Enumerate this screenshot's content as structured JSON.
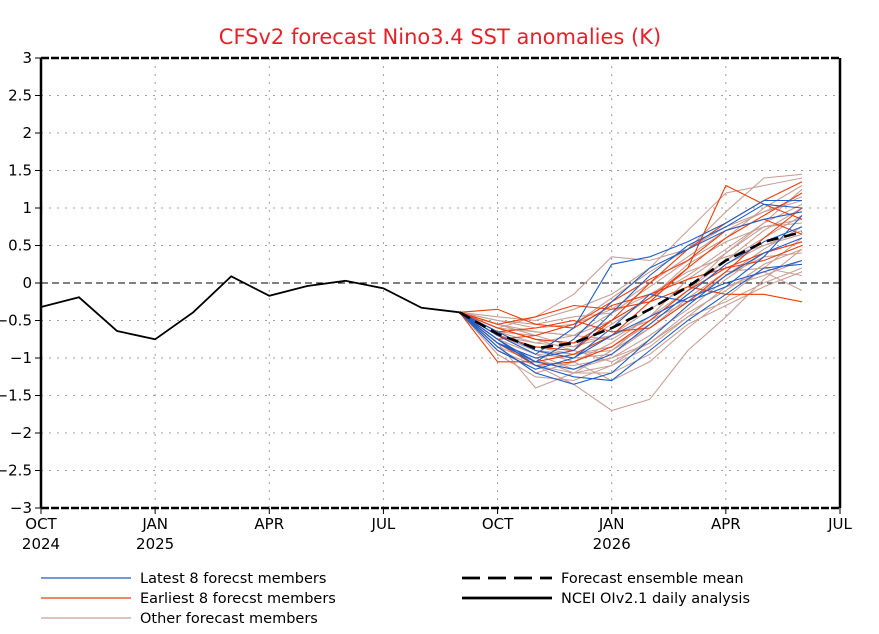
{
  "chart_data": {
    "type": "line",
    "title": "CFSv2 forecast Nino3.4 SST anomalies (K)",
    "xlabel": "",
    "ylabel": "",
    "ylim": [
      -3,
      3
    ],
    "yticks": [
      3,
      2.5,
      2,
      1.5,
      1,
      0.5,
      0,
      -0.5,
      -1,
      -1.5,
      -2,
      -2.5,
      -3
    ],
    "ytick_labels": [
      "3",
      "2.5",
      "2",
      "1.5",
      "1",
      "0.5",
      "0",
      "-0.5",
      "-1",
      "-1.5",
      "-2",
      "-2.5",
      "-3"
    ],
    "xlim_months": [
      0,
      21
    ],
    "xticks": [
      {
        "month": 0,
        "line1": "OCT",
        "line2": "2024"
      },
      {
        "month": 3,
        "line1": "JAN",
        "line2": "2025"
      },
      {
        "month": 6,
        "line1": "APR",
        "line2": ""
      },
      {
        "month": 9,
        "line1": "JUL",
        "line2": ""
      },
      {
        "month": 12,
        "line1": "OCT",
        "line2": ""
      },
      {
        "month": 15,
        "line1": "JAN",
        "line2": "2026"
      },
      {
        "month": 18,
        "line1": "APR",
        "line2": ""
      },
      {
        "month": 21,
        "line1": "JUL",
        "line2": ""
      }
    ],
    "grid": true,
    "zero_line": true,
    "legend": {
      "placement": "bottom",
      "entries": [
        {
          "label": "Latest 8 forecst members",
          "color": "#1f5fc8",
          "style": "solid"
        },
        {
          "label": "Earliest 8 forecst members",
          "color": "#f03c0a",
          "style": "solid"
        },
        {
          "label": "Other forecast members",
          "color": "#c8a096",
          "style": "solid"
        },
        {
          "label": "Forecast ensemble mean",
          "color": "#000000",
          "style": "dashed"
        },
        {
          "label": "NCEI OIv2.1 daily analysis",
          "color": "#000000",
          "style": "solid"
        }
      ]
    },
    "observed": {
      "name": "NCEI OIv2.1 daily analysis",
      "x_months": [
        0,
        1,
        2,
        3,
        4,
        5,
        6,
        7,
        8,
        9,
        10,
        11
      ],
      "values": [
        -0.32,
        -0.19,
        -0.64,
        -0.75,
        -0.39,
        0.09,
        -0.17,
        -0.04,
        0.03,
        -0.07,
        -0.33,
        -0.39
      ]
    },
    "forecast_x_months": [
      11,
      12,
      13,
      14,
      15,
      16,
      17,
      18,
      19,
      20
    ],
    "ensemble_mean": {
      "name": "Forecast ensemble mean",
      "values": [
        -0.39,
        -0.68,
        -0.87,
        -0.8,
        -0.6,
        -0.35,
        -0.05,
        0.3,
        0.55,
        0.68
      ]
    },
    "series": [
      {
        "name": "latest-1",
        "group": "latest",
        "values": [
          -0.39,
          -0.75,
          -1.05,
          -1.15,
          -0.95,
          -0.55,
          -0.15,
          0.25,
          0.55,
          0.75
        ]
      },
      {
        "name": "latest-2",
        "group": "latest",
        "values": [
          -0.39,
          -0.85,
          -1.2,
          -1.35,
          -1.2,
          -0.75,
          -0.3,
          0.1,
          0.4,
          0.6
        ]
      },
      {
        "name": "latest-3",
        "group": "latest",
        "values": [
          -0.39,
          -0.7,
          -0.95,
          -0.6,
          0.25,
          0.35,
          0.55,
          0.8,
          1.1,
          1.1
        ]
      },
      {
        "name": "latest-4",
        "group": "latest",
        "values": [
          -0.39,
          -0.8,
          -1.0,
          -0.9,
          -0.4,
          0.1,
          0.5,
          0.75,
          1.05,
          1.0
        ]
      },
      {
        "name": "latest-5",
        "group": "latest",
        "values": [
          -0.39,
          -0.9,
          -1.15,
          -1.0,
          -0.7,
          -0.45,
          -0.2,
          0.0,
          0.15,
          0.3
        ]
      },
      {
        "name": "latest-6",
        "group": "latest",
        "values": [
          -0.39,
          -0.75,
          -1.1,
          -1.25,
          -1.3,
          -0.9,
          -0.5,
          -0.15,
          0.2,
          0.25
        ]
      },
      {
        "name": "latest-7",
        "group": "latest",
        "values": [
          -0.39,
          -0.65,
          -0.9,
          -1.0,
          -0.6,
          -0.15,
          -0.25,
          -0.05,
          0.35,
          0.9
        ]
      },
      {
        "name": "latest-8",
        "group": "latest",
        "values": [
          -0.39,
          -0.8,
          -1.05,
          -0.75,
          -0.25,
          0.2,
          0.45,
          0.7,
          0.85,
          0.95
        ]
      },
      {
        "name": "earliest-1",
        "group": "earliest",
        "values": [
          -0.39,
          -1.05,
          -1.05,
          -0.95,
          -0.7,
          -0.25,
          0.2,
          1.3,
          1.05,
          0.85
        ]
      },
      {
        "name": "earliest-2",
        "group": "earliest",
        "values": [
          -0.39,
          -0.55,
          -0.45,
          -0.3,
          -0.35,
          -0.25,
          -0.05,
          -0.15,
          -0.15,
          -0.25
        ]
      },
      {
        "name": "earliest-3",
        "group": "earliest",
        "values": [
          -0.39,
          -0.7,
          -0.85,
          -0.9,
          -0.5,
          0.0,
          0.45,
          0.8,
          1.1,
          1.35
        ]
      },
      {
        "name": "earliest-4",
        "group": "earliest",
        "values": [
          -0.39,
          -0.35,
          -0.55,
          -0.6,
          -0.3,
          -0.15,
          0.05,
          0.2,
          0.4,
          0.55
        ]
      },
      {
        "name": "earliest-5",
        "group": "earliest",
        "values": [
          -0.39,
          -0.65,
          -0.6,
          -0.5,
          -0.65,
          -0.6,
          -0.25,
          0.15,
          0.6,
          1.0
        ]
      },
      {
        "name": "earliest-6",
        "group": "earliest",
        "values": [
          -0.39,
          -0.6,
          -0.75,
          -0.8,
          -0.5,
          -0.2,
          0.2,
          0.6,
          0.9,
          1.2
        ]
      },
      {
        "name": "earliest-7",
        "group": "earliest",
        "values": [
          -0.39,
          -0.8,
          -1.1,
          -1.05,
          -0.85,
          -0.5,
          -0.1,
          0.2,
          0.3,
          0.5
        ]
      },
      {
        "name": "earliest-8",
        "group": "earliest",
        "values": [
          -0.39,
          -0.75,
          -0.7,
          -0.55,
          -0.25,
          0.05,
          0.3,
          0.7,
          0.85,
          0.65
        ]
      },
      {
        "name": "other-1",
        "group": "other",
        "values": [
          -0.39,
          -0.7,
          -0.9,
          -1.05,
          -1.3,
          -1.05,
          -0.6,
          -0.2,
          0.2,
          0.6
        ]
      },
      {
        "name": "other-2",
        "group": "other",
        "values": [
          -0.39,
          -0.8,
          -1.4,
          -1.2,
          -0.9,
          -0.5,
          -0.1,
          0.3,
          0.7,
          1.0
        ]
      },
      {
        "name": "other-3",
        "group": "other",
        "values": [
          -0.39,
          -0.9,
          -1.1,
          -1.35,
          -1.7,
          -1.55,
          -0.9,
          -0.45,
          0.05,
          0.45
        ]
      },
      {
        "name": "other-4",
        "group": "other",
        "values": [
          -0.39,
          -0.6,
          -0.45,
          -0.15,
          0.35,
          0.3,
          0.45,
          0.95,
          1.4,
          1.45
        ]
      },
      {
        "name": "other-5",
        "group": "other",
        "values": [
          -0.39,
          -0.45,
          -0.5,
          -0.35,
          -0.15,
          0.2,
          0.7,
          1.2,
          1.3,
          1.4
        ]
      },
      {
        "name": "other-6",
        "group": "other",
        "values": [
          -0.39,
          -0.75,
          -0.95,
          -1.15,
          -1.0,
          -0.8,
          -0.45,
          -0.05,
          0.1,
          0.3
        ]
      },
      {
        "name": "other-7",
        "group": "other",
        "values": [
          -0.39,
          -0.55,
          -0.65,
          -0.7,
          -0.75,
          -0.45,
          -0.1,
          0.4,
          0.8,
          1.05
        ]
      },
      {
        "name": "other-8",
        "group": "other",
        "values": [
          -0.39,
          -0.65,
          -0.8,
          -0.85,
          -0.55,
          -0.2,
          0.25,
          0.55,
          0.75,
          0.8
        ]
      },
      {
        "name": "other-9",
        "group": "other",
        "values": [
          -0.39,
          -0.85,
          -1.05,
          -1.1,
          -1.0,
          -0.7,
          -0.35,
          0.05,
          0.4,
          0.55
        ]
      },
      {
        "name": "other-10",
        "group": "other",
        "values": [
          -0.39,
          -0.7,
          -0.85,
          -0.95,
          -0.9,
          -0.6,
          -0.2,
          0.15,
          0.2,
          0.1
        ]
      },
      {
        "name": "other-11",
        "group": "other",
        "values": [
          -0.39,
          -0.5,
          -0.6,
          -0.55,
          -0.35,
          0.0,
          0.35,
          0.7,
          0.95,
          1.15
        ]
      },
      {
        "name": "other-12",
        "group": "other",
        "values": [
          -0.39,
          -0.8,
          -1.0,
          -1.2,
          -1.1,
          -0.75,
          -0.3,
          0.1,
          0.35,
          0.4
        ]
      },
      {
        "name": "other-13",
        "group": "other",
        "values": [
          -0.39,
          -0.6,
          -0.75,
          -0.8,
          -0.7,
          -0.35,
          -0.05,
          0.3,
          0.6,
          0.9
        ]
      },
      {
        "name": "other-14",
        "group": "other",
        "values": [
          -0.39,
          -0.55,
          -0.7,
          -0.85,
          -0.7,
          -0.5,
          -0.25,
          -0.05,
          0.15,
          -0.1
        ]
      },
      {
        "name": "other-15",
        "group": "other",
        "values": [
          -0.39,
          -0.95,
          -1.25,
          -1.3,
          -1.1,
          -0.85,
          -0.45,
          -0.25,
          0.0,
          0.2
        ]
      },
      {
        "name": "other-16",
        "group": "other",
        "values": [
          -0.39,
          -0.65,
          -0.7,
          -0.55,
          -0.2,
          0.15,
          0.45,
          0.75,
          0.95,
          1.1
        ]
      },
      {
        "name": "other-17",
        "group": "other",
        "values": [
          -0.39,
          -0.7,
          -0.9,
          -0.95,
          -0.85,
          -0.55,
          -0.15,
          0.25,
          0.5,
          0.65
        ]
      },
      {
        "name": "other-18",
        "group": "other",
        "values": [
          -0.39,
          -0.75,
          -0.95,
          -1.0,
          -0.95,
          -0.6,
          -0.25,
          0.1,
          0.45,
          0.75
        ]
      },
      {
        "name": "other-19",
        "group": "other",
        "values": [
          -0.39,
          -0.6,
          -0.65,
          -0.7,
          -0.5,
          -0.2,
          0.1,
          0.45,
          0.8,
          1.25
        ]
      },
      {
        "name": "other-20",
        "group": "other",
        "values": [
          -0.39,
          -0.85,
          -1.2,
          -1.05,
          -0.8,
          -0.45,
          0.05,
          0.4,
          0.75,
          0.85
        ]
      },
      {
        "name": "other-21",
        "group": "other",
        "values": [
          -0.39,
          -0.5,
          -0.55,
          -0.45,
          -0.4,
          -0.15,
          0.15,
          0.35,
          0.5,
          0.7
        ]
      },
      {
        "name": "other-22",
        "group": "other",
        "values": [
          -0.39,
          -0.8,
          -1.1,
          -1.2,
          -1.2,
          -0.95,
          -0.55,
          -0.3,
          -0.05,
          0.15
        ]
      },
      {
        "name": "other-23",
        "group": "other",
        "values": [
          -0.39,
          -0.7,
          -0.8,
          -0.7,
          -0.4,
          -0.05,
          0.3,
          0.6,
          1.0,
          1.3
        ]
      },
      {
        "name": "other-24",
        "group": "other",
        "values": [
          -0.39,
          -0.6,
          -0.75,
          -0.9,
          -1.05,
          -0.8,
          -0.4,
          -0.1,
          0.25,
          0.45
        ]
      }
    ],
    "group_colors": {
      "latest": "#1f5fc8",
      "earliest": "#f03c0a",
      "other": "#c8a096",
      "mean": "#000000",
      "observed": "#000000",
      "grid": "#a0a0a0",
      "title": "#e8202a"
    }
  }
}
